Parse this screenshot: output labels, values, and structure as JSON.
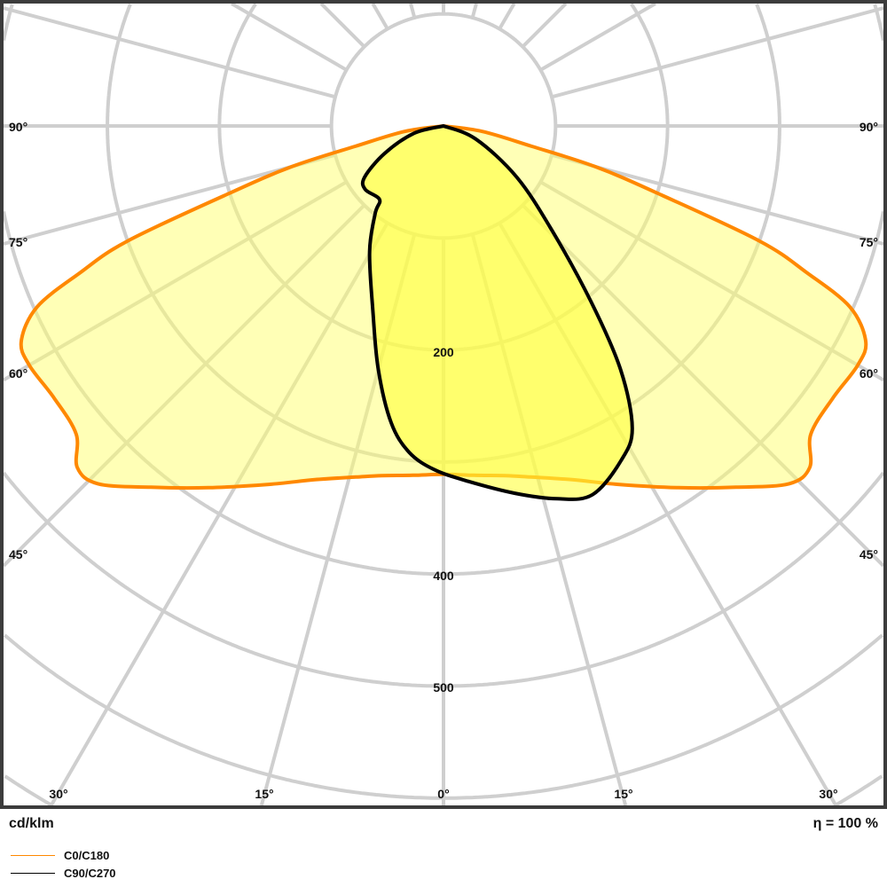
{
  "chart_data": {
    "type": "line",
    "coordinate_system": "polar",
    "unit_label": "cd/klm",
    "efficiency_label": "η = 100 %",
    "radial_tick_labels": [
      "200",
      "400",
      "500"
    ],
    "radial_grid_values": [
      100,
      200,
      300,
      400,
      500,
      600,
      700,
      800,
      900
    ],
    "angle_grid_step_deg": 15,
    "side_angle_labels": [
      "90°",
      "75°",
      "60°",
      "45°"
    ],
    "bottom_angle_labels": [
      "30°",
      "15°",
      "0°",
      "15°",
      "30°"
    ],
    "grid": true,
    "legend_placement": "bottom-left",
    "series": [
      {
        "name": "C0/C180",
        "color": "#ff8800",
        "fill": "#ffff9e",
        "symmetric": true,
        "angles_deg": [
          0,
          5,
          10,
          14,
          20,
          26,
          33,
          39,
          44,
          47,
          50,
          55,
          60,
          63,
          66,
          68,
          70,
          72.6,
          75,
          77,
          82,
          90
        ],
        "values": [
          311,
          313,
          317,
          323,
          336,
          356,
          385,
          415,
          444,
          447,
          428,
          424,
          427,
          423,
          397,
          350,
          300,
          199,
          140,
          81,
          35,
          0
        ]
      },
      {
        "name": "C90/C270",
        "color": "#000000",
        "fill": "#ffff66",
        "symmetric": false,
        "angles_deg": [
          -90,
          -76,
          -65,
          -57,
          -51,
          -41,
          -38,
          -30.5,
          -21,
          -15,
          -10,
          -6,
          -1.5,
          4,
          11,
          17,
          22,
          28,
          32,
          36,
          40,
          46,
          55,
          68,
          90
        ],
        "values": [
          0,
          27,
          58,
          84,
          90,
          87,
          99,
          130,
          176,
          225,
          269,
          293,
          307,
          318,
          334,
          348,
          355,
          338,
          318,
          269,
          205,
          135,
          80,
          31,
          0
        ]
      }
    ]
  }
}
